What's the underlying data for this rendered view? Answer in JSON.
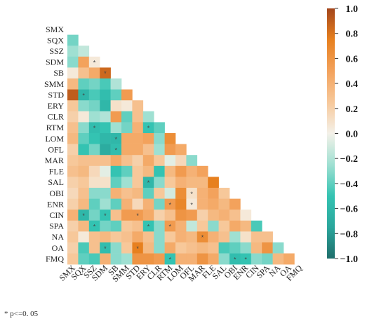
{
  "chart_data": {
    "type": "heatmap",
    "title": "",
    "variables": [
      "SMX",
      "SQX",
      "SSZ",
      "SDM",
      "SB",
      "SMM",
      "STD",
      "ERY",
      "CLR",
      "RTM",
      "LOM",
      "OFL",
      "MAR",
      "FLE",
      "SAL",
      "OBI",
      "ENR",
      "CIN",
      "SPA",
      "NA",
      "OA",
      "FMQ"
    ],
    "matrix_shape": "lower-triangle",
    "values": [
      [],
      [
        -0.35
      ],
      [
        -0.25,
        -0.15
      ],
      [
        -0.3,
        0.5,
        0.05
      ],
      [
        0.05,
        0.3,
        0.45,
        0.85
      ],
      [
        0.35,
        -0.4,
        -0.35,
        -0.45,
        -0.2
      ],
      [
        0.9,
        -0.6,
        -0.45,
        -0.55,
        -0.4,
        0.55
      ],
      [
        0.25,
        -0.3,
        -0.35,
        -0.6,
        0.1,
        0.05,
        0.3
      ],
      [
        0.2,
        0.05,
        -0.25,
        -0.2,
        0.55,
        -0.4,
        0.3,
        -0.25
      ],
      [
        0.3,
        -0.3,
        -0.55,
        -0.5,
        -0.25,
        -0.35,
        0.4,
        -0.5,
        -0.4
      ],
      [
        0.35,
        -0.4,
        -0.5,
        -0.6,
        -0.6,
        0.45,
        0.45,
        0.5,
        -0.3,
        0.65
      ],
      [
        0.2,
        -0.5,
        -0.35,
        -0.7,
        -0.55,
        0.45,
        0.45,
        0.3,
        -0.25,
        0.55,
        0.45
      ],
      [
        0.25,
        0.3,
        0.3,
        0.3,
        0.45,
        0.3,
        0.2,
        0.45,
        0.25,
        -0.05,
        0.15,
        -0.3
      ],
      [
        0.3,
        0.35,
        0.15,
        -0.05,
        -0.5,
        -0.4,
        0.25,
        0.35,
        -0.5,
        0.35,
        0.55,
        0.4,
        0.5
      ],
      [
        0.2,
        0.25,
        0.1,
        0.1,
        -0.4,
        -0.25,
        0.25,
        -0.6,
        -0.3,
        0.25,
        0.4,
        0.35,
        0.35,
        0.75
      ],
      [
        0.15,
        0.3,
        -0.3,
        -0.3,
        0.4,
        0.3,
        0.35,
        -0.4,
        0.25,
        -0.1,
        0.65,
        0.1,
        0.4,
        0.5,
        0.25
      ],
      [
        0.2,
        0.35,
        -0.4,
        -0.25,
        -0.4,
        0.4,
        0.15,
        0.4,
        -0.35,
        0.55,
        0.7,
        0.05,
        0.4,
        0.45,
        0.35,
        0.5
      ],
      [
        0.4,
        -0.6,
        -0.35,
        -0.5,
        0.3,
        0.55,
        0.55,
        0.45,
        0.2,
        0.3,
        0.6,
        0.55,
        0.2,
        0.35,
        0.4,
        0.3,
        0.05
      ],
      [
        0.2,
        0.35,
        -0.5,
        -0.35,
        -0.4,
        0.25,
        0.3,
        -0.5,
        -0.3,
        0.55,
        0.4,
        -0.15,
        0.25,
        -0.3,
        0.25,
        0.45,
        0.35,
        -0.45
      ],
      [
        0.25,
        0.05,
        0.3,
        0.35,
        0.25,
        0.3,
        0.45,
        0.3,
        -0.3,
        0.25,
        0.4,
        0.35,
        0.65,
        0.4,
        0.3,
        -0.25,
        0.1,
        0.3,
        0.3
      ],
      [
        0.2,
        -0.45,
        0.3,
        -0.55,
        -0.3,
        0.25,
        0.75,
        0.35,
        -0.3,
        0.45,
        0.25,
        0.3,
        0.35,
        0.3,
        -0.45,
        -0.4,
        -0.3,
        0.35,
        0.6,
        -0.3
      ],
      [
        0.25,
        -0.4,
        -0.45,
        0.4,
        -0.3,
        -0.25,
        0.6,
        0.6,
        0.55,
        -0.5,
        0.4,
        0.4,
        0.6,
        0.45,
        -0.3,
        -0.55,
        -0.5,
        -0.3,
        -0.35,
        0.35,
        0.45
      ]
    ],
    "significant": [
      [
        3,
        2
      ],
      [
        4,
        3
      ],
      [
        6,
        1
      ],
      [
        9,
        2
      ],
      [
        9,
        7
      ],
      [
        10,
        4
      ],
      [
        11,
        4
      ],
      [
        14,
        7
      ],
      [
        15,
        11
      ],
      [
        16,
        9
      ],
      [
        16,
        11
      ],
      [
        17,
        1
      ],
      [
        17,
        3
      ],
      [
        17,
        6
      ],
      [
        18,
        2
      ],
      [
        18,
        7
      ],
      [
        18,
        9
      ],
      [
        19,
        12
      ],
      [
        20,
        3
      ],
      [
        20,
        6
      ],
      [
        21,
        9
      ],
      [
        21,
        15
      ],
      [
        21,
        16
      ]
    ],
    "colorbar": {
      "min": -1.0,
      "max": 1.0,
      "ticks": [
        "1.0",
        "0.8",
        "0.6",
        "0.4",
        "0.2",
        "0.0",
        "−0.2",
        "−0.4",
        "−0.6",
        "−0.8",
        "−1.0"
      ],
      "colors": [
        "#1f6e6b",
        "#2aa69c",
        "#34c3b2",
        "#9fe0d2",
        "#f4f1e9",
        "#f7c89a",
        "#f3a25c",
        "#e7801f",
        "#a3461c"
      ]
    },
    "sig_marker": "*",
    "footnote": "* p<=0. 05"
  }
}
